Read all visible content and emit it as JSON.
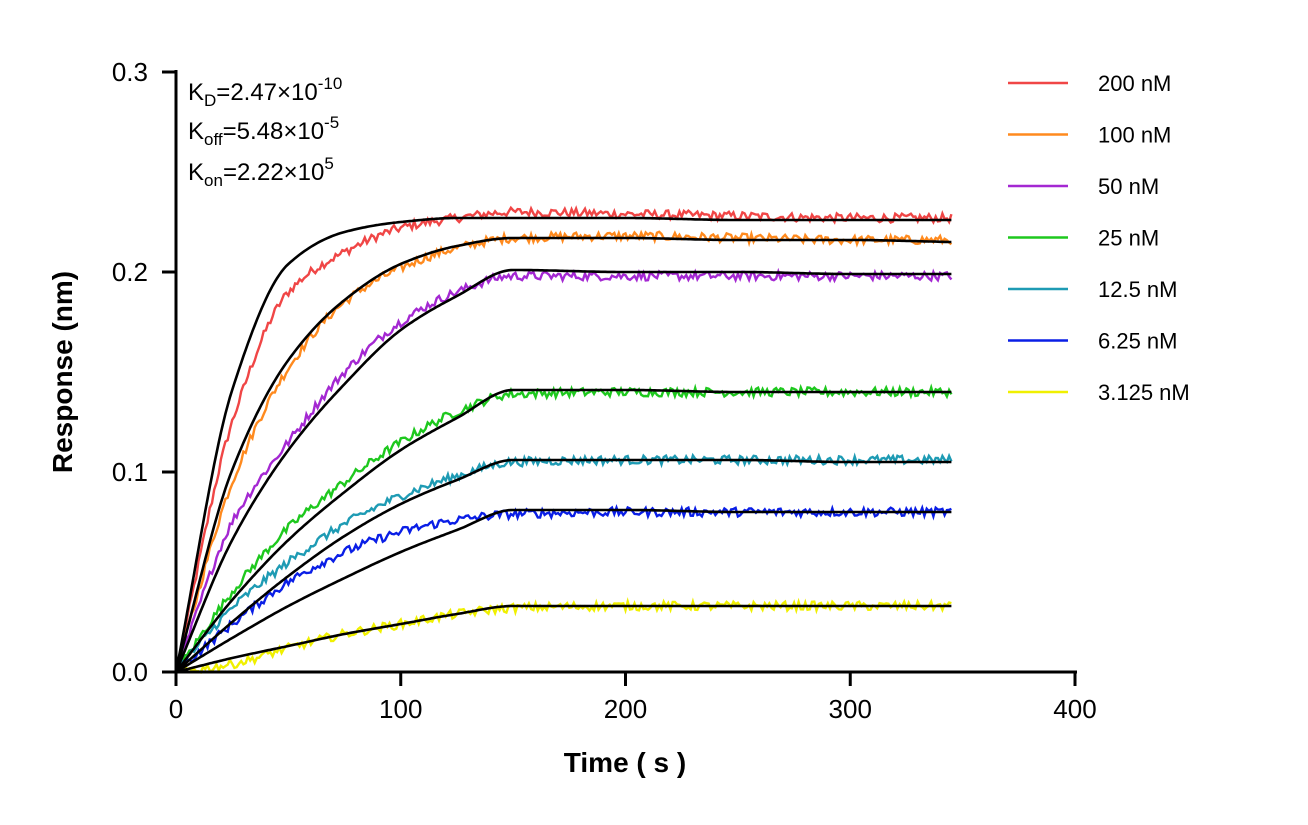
{
  "chart_data": {
    "type": "line",
    "xlabel": "Time ( s )",
    "ylabel": "Response (nm)",
    "xlim": [
      0,
      400
    ],
    "ylim": [
      0,
      0.3
    ],
    "xticks": [
      "0",
      "100",
      "200",
      "300",
      "400"
    ],
    "yticks": [
      "0.0",
      "0.1",
      "0.2",
      "0.3"
    ],
    "grid": false,
    "legend_position": "right",
    "annotations": {
      "kd": {
        "label": "K",
        "sub": "D",
        "value": "=2.47×10",
        "exp": "-10"
      },
      "koff": {
        "label": "K",
        "sub": "off",
        "value": "=5.48×10",
        "exp": "-5"
      },
      "kon": {
        "label": "K",
        "sub": "on",
        "value": "=2.22×10",
        "exp": "5"
      }
    },
    "fit_color": "#000000",
    "x": [
      0,
      25,
      50,
      75,
      100,
      125,
      150,
      200,
      250,
      300,
      345
    ],
    "series": [
      {
        "name": "200 nM",
        "color": "#f04646",
        "fit": [
          0,
          0.141,
          0.204,
          0.22,
          0.225,
          0.227,
          0.227,
          0.227,
          0.226,
          0.226,
          0.226
        ],
        "measured": [
          0,
          0.125,
          0.19,
          0.21,
          0.222,
          0.227,
          0.23,
          0.229,
          0.228,
          0.227,
          0.227
        ]
      },
      {
        "name": "100 nM",
        "color": "#ff8a1e",
        "fit": [
          0,
          0.101,
          0.156,
          0.186,
          0.204,
          0.213,
          0.217,
          0.217,
          0.216,
          0.216,
          0.215
        ],
        "measured": [
          0,
          0.095,
          0.152,
          0.185,
          0.202,
          0.212,
          0.217,
          0.218,
          0.217,
          0.216,
          0.216
        ]
      },
      {
        "name": "50 nM",
        "color": "#a428d2",
        "fit": [
          0,
          0.066,
          0.111,
          0.144,
          0.171,
          0.188,
          0.201,
          0.2,
          0.2,
          0.199,
          0.199
        ],
        "measured": [
          0,
          0.075,
          0.115,
          0.15,
          0.175,
          0.19,
          0.198,
          0.198,
          0.198,
          0.198,
          0.198
        ]
      },
      {
        "name": "25 nM",
        "color": "#1ec81e",
        "fit": [
          0,
          0.036,
          0.066,
          0.09,
          0.111,
          0.127,
          0.141,
          0.141,
          0.14,
          0.14,
          0.14
        ],
        "measured": [
          0,
          0.04,
          0.072,
          0.095,
          0.115,
          0.13,
          0.139,
          0.14,
          0.14,
          0.14,
          0.14
        ]
      },
      {
        "name": "12.5 nM",
        "color": "#1e9bb4",
        "fit": [
          0,
          0.025,
          0.048,
          0.068,
          0.084,
          0.096,
          0.106,
          0.106,
          0.106,
          0.105,
          0.105
        ],
        "measured": [
          0,
          0.032,
          0.055,
          0.074,
          0.088,
          0.098,
          0.105,
          0.106,
          0.106,
          0.106,
          0.106
        ]
      },
      {
        "name": "6.25 nM",
        "color": "#0a1ee6",
        "fit": [
          0,
          0.017,
          0.033,
          0.047,
          0.06,
          0.071,
          0.081,
          0.081,
          0.08,
          0.08,
          0.08
        ],
        "measured": [
          0,
          0.024,
          0.045,
          0.06,
          0.07,
          0.076,
          0.079,
          0.08,
          0.08,
          0.08,
          0.08
        ]
      },
      {
        "name": "3.125 nM",
        "color": "#f0f000",
        "fit": [
          0,
          0.007,
          0.013,
          0.019,
          0.024,
          0.029,
          0.033,
          0.033,
          0.033,
          0.033,
          0.033
        ],
        "measured": [
          0,
          0.004,
          0.012,
          0.019,
          0.024,
          0.029,
          0.032,
          0.033,
          0.033,
          0.033,
          0.033
        ]
      }
    ]
  }
}
